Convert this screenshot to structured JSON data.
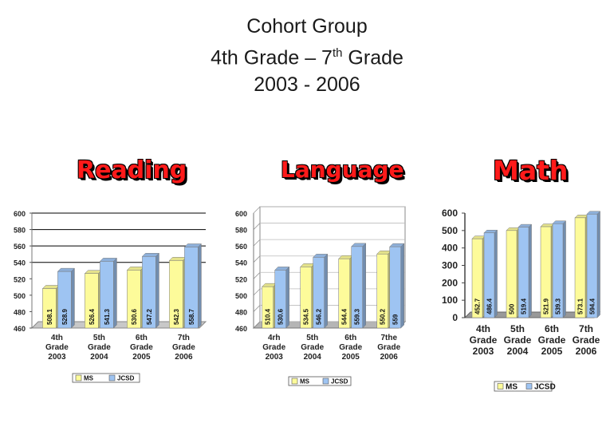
{
  "title": {
    "line1": "Cohort Group",
    "line2_pre": "4th Grade – 7",
    "line2_sup": "th",
    "line2_post": " Grade",
    "line3": "2003 - 2006"
  },
  "colors": {
    "ms": "#fdfb9a",
    "jcsd": "#9ec4f2"
  },
  "chart_data": [
    {
      "type": "bar",
      "title": "Reading",
      "categories": [
        [
          "4th",
          "Grade",
          "2003"
        ],
        [
          "5th",
          "Grade",
          "2004"
        ],
        [
          "6th",
          "Grade",
          "2005"
        ],
        [
          "7th",
          "Grade",
          "2006"
        ]
      ],
      "series": [
        {
          "name": "MS",
          "values": [
            508.1,
            526.4,
            530.6,
            542.3
          ]
        },
        {
          "name": "JCSD",
          "values": [
            528.9,
            541.3,
            547.2,
            558.7
          ]
        }
      ],
      "value_labels": [
        [
          "508.1",
          "526.4",
          "530.6",
          "542.3"
        ],
        [
          "528.9",
          "541.3",
          "547.2",
          "558.7"
        ]
      ],
      "ylim": [
        460,
        600
      ],
      "yticks": [
        460,
        480,
        500,
        520,
        540,
        560,
        580,
        600
      ],
      "legend": "bottom"
    },
    {
      "type": "bar",
      "title": "Language",
      "categories": [
        [
          "4rh",
          "Grade",
          "2003"
        ],
        [
          "5th",
          "Grade",
          "2004"
        ],
        [
          "6th",
          "Grade",
          "2005"
        ],
        [
          "7the",
          "Grade",
          "2006"
        ]
      ],
      "series": [
        {
          "name": "MS",
          "values": [
            510.4,
            534.5,
            544.4,
            550.2
          ]
        },
        {
          "name": "JCSD",
          "values": [
            530.6,
            546.2,
            559.3,
            559
          ]
        }
      ],
      "value_labels": [
        [
          "510.4",
          "534.5",
          "544.4",
          "550.2"
        ],
        [
          "530.6",
          "546.2",
          "559.3",
          "559"
        ]
      ],
      "ylim": [
        460,
        600
      ],
      "yticks": [
        460,
        480,
        500,
        520,
        540,
        560,
        580,
        600
      ],
      "legend": "bottom"
    },
    {
      "type": "bar",
      "title": "Math",
      "categories": [
        [
          "4th",
          "Grade",
          "2003"
        ],
        [
          "5th",
          "Grade",
          "2004"
        ],
        [
          "6th",
          "Grade",
          "2005"
        ],
        [
          "7th",
          "Grade",
          "2006"
        ]
      ],
      "series": [
        {
          "name": "MS",
          "values": [
            452.7,
            500,
            521.9,
            573.1
          ]
        },
        {
          "name": "JCSD",
          "values": [
            486.4,
            519.4,
            539.3,
            594.4
          ]
        }
      ],
      "value_labels": [
        [
          "452.7",
          "500",
          "521.9",
          "573.1"
        ],
        [
          "486.4",
          "519.4",
          "539.3",
          "594.4"
        ]
      ],
      "ylim": [
        0,
        600
      ],
      "yticks": [
        0,
        100,
        200,
        300,
        400,
        500,
        600
      ],
      "legend": "bottom"
    }
  ]
}
